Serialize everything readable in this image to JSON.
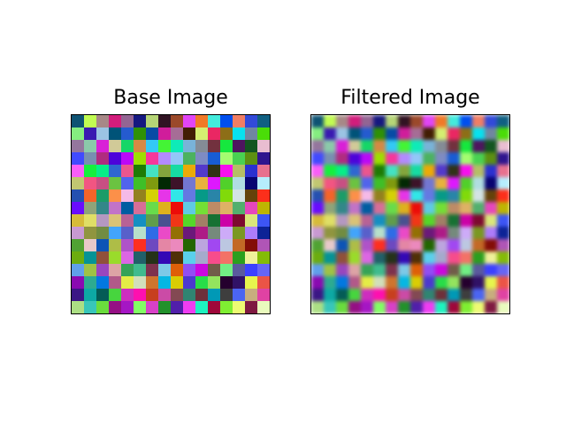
{
  "figure": {
    "panels": [
      {
        "title": "Base Image"
      },
      {
        "title": "Filtered Image"
      }
    ]
  },
  "chart_data": [
    {
      "type": "heatmap",
      "title": "Base Image",
      "rows": 16,
      "cols": 16,
      "axes_visible": false,
      "interpolation": "nearest",
      "seed": 19
    },
    {
      "type": "heatmap",
      "title": "Filtered Image",
      "rows": 16,
      "cols": 16,
      "axes_visible": false,
      "interpolation": "smoothed",
      "seed": 19
    }
  ]
}
